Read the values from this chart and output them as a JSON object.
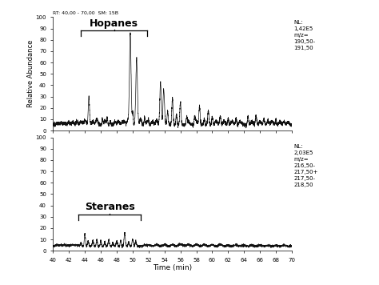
{
  "title_top": "RT: 40,00 - 70,00  SM: 15B",
  "xlabel": "Time (min)",
  "ylabel": "Relative Abundance",
  "xmin": 40,
  "xmax": 70,
  "xticks": [
    40,
    42,
    44,
    46,
    48,
    50,
    52,
    54,
    56,
    58,
    60,
    62,
    64,
    66,
    68,
    70
  ],
  "yticks": [
    0,
    10,
    20,
    30,
    40,
    50,
    60,
    70,
    80,
    90,
    100
  ],
  "hopanes_label": "Hopanes",
  "steranes_label": "Steranes",
  "nl_hopanes": "NL:\n1,42E5\nm/z=\n190,50-\n191,50",
  "nl_steranes": "NL:\n2,03E5\nm/z=\n216,50-\n217,50+\n217,50-\n218,50",
  "hopanes_bracket_x1": 43.5,
  "hopanes_bracket_x2": 51.8,
  "steranes_bracket_x1": 43.2,
  "steranes_bracket_x2": 51.0,
  "background_color": "#ffffff",
  "line_color": "#111111"
}
